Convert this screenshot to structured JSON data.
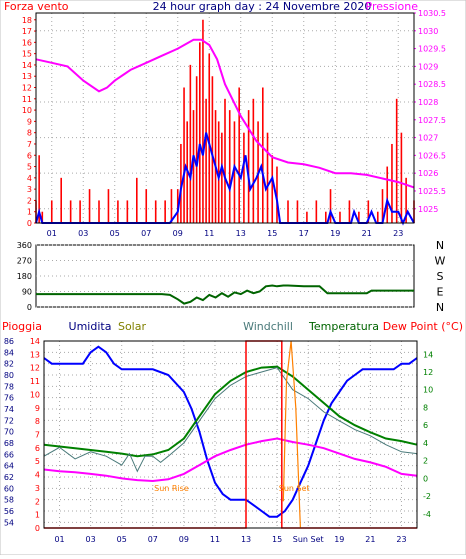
{
  "header": {
    "left_label": "Forza vento",
    "title": "24 hour graph day : 24 Novembre 2020",
    "right_label": "Pressione"
  },
  "colors": {
    "red": "#ff0000",
    "blue": "#0000ff",
    "magenta": "#ff00ff",
    "dark_green": "#006400",
    "green": "#008000",
    "olive": "#808000",
    "orange": "#ff8000",
    "navy": "#000080",
    "grey_green": "#4a7a7a",
    "dot_grid": "#aaaaaa",
    "window_bg": "#d8d8d8"
  },
  "chart_data": [
    {
      "type": "line",
      "name": "wind-and-pressure",
      "x_ticks": [
        "01",
        "03",
        "05",
        "07",
        "09",
        "11",
        "13",
        "15",
        "17",
        "19",
        "21",
        "23"
      ],
      "y_left_ticks": [
        "0",
        "1",
        "2",
        "3",
        "4",
        "5",
        "6",
        "7",
        "8",
        "9",
        "10",
        "11",
        "12",
        "13",
        "14",
        "15",
        "16",
        "17",
        "18"
      ],
      "y_right_ticks": [
        "1025",
        "1025.5",
        "1026",
        "1026.5",
        "1027",
        "1027.5",
        "1028",
        "1028.5",
        "1029",
        "1029.5",
        "1030",
        "1030.5"
      ],
      "ylim_left": [
        0,
        18.6
      ],
      "ylim_right": [
        1024.6,
        1030.5
      ],
      "xlim": [
        0,
        24
      ],
      "grid": "dotted",
      "series": [
        {
          "color_key": "magenta",
          "axis": "right",
          "x": [
            0,
            1,
            2,
            3,
            4,
            4.5,
            5,
            6,
            7,
            8,
            9,
            10,
            10.5,
            11,
            11.5,
            12,
            13,
            14,
            15,
            16,
            17,
            18,
            19,
            20,
            21,
            22,
            23,
            24
          ],
          "y": [
            1029.2,
            1029.1,
            1029.0,
            1028.6,
            1028.3,
            1028.4,
            1028.6,
            1028.9,
            1029.1,
            1029.3,
            1029.5,
            1029.75,
            1029.75,
            1029.6,
            1029.2,
            1028.5,
            1027.6,
            1026.9,
            1026.45,
            1026.3,
            1026.25,
            1026.15,
            1026.0,
            1026.0,
            1025.95,
            1025.85,
            1025.75,
            1025.6
          ]
        },
        {
          "color_key": "blue",
          "axis": "left",
          "x": [
            0,
            0.2,
            0.4,
            1,
            1.5,
            2,
            2.5,
            3,
            3.5,
            4,
            4.5,
            5,
            5.5,
            6,
            6.5,
            7,
            7.5,
            8,
            8.5,
            9,
            9.2,
            9.5,
            9.8,
            10,
            10.2,
            10.4,
            10.6,
            10.8,
            11,
            11.2,
            11.4,
            11.6,
            11.8,
            12,
            12.3,
            12.6,
            13,
            13.3,
            13.6,
            14,
            14.3,
            14.6,
            15,
            15.3,
            15.5,
            16,
            17,
            18,
            18.5,
            18.7,
            19,
            20,
            20.2,
            20.5,
            21,
            21.3,
            21.6,
            22,
            22.3,
            22.6,
            23,
            23.3,
            23.6,
            24
          ],
          "y": [
            0,
            1,
            0,
            0,
            0,
            0,
            0,
            0,
            0,
            0,
            0,
            0,
            0,
            0,
            0,
            0,
            0,
            0,
            0,
            1,
            3,
            5,
            4,
            6,
            5,
            7,
            6,
            8,
            7,
            6,
            5,
            4,
            5,
            4,
            3,
            5,
            4,
            6,
            3,
            4,
            5,
            3,
            4,
            2,
            0,
            0,
            0,
            0,
            0,
            1,
            0,
            0,
            1,
            0,
            0,
            1,
            0,
            0,
            2,
            1,
            1,
            0,
            1,
            0
          ]
        }
      ],
      "wind_gust_bars": {
        "color_key": "red",
        "axis": "left",
        "x": [
          0,
          0.2,
          0.4,
          1,
          1.6,
          2.2,
          2.8,
          3.4,
          4.0,
          4.6,
          5.2,
          5.8,
          6.4,
          7.0,
          7.6,
          8.2,
          8.6,
          9.0,
          9.2,
          9.4,
          9.6,
          9.8,
          10.0,
          10.2,
          10.4,
          10.6,
          10.8,
          11.0,
          11.2,
          11.4,
          11.6,
          11.8,
          12.0,
          12.3,
          12.6,
          12.9,
          13.2,
          13.5,
          13.8,
          14.1,
          14.4,
          14.7,
          15.0,
          15.3,
          16.0,
          16.6,
          17.2,
          17.8,
          18.4,
          18.7,
          19.3,
          19.9,
          20.5,
          21.1,
          21.7,
          22.0,
          22.3,
          22.6,
          22.9,
          23.2,
          23.5,
          24.0
        ],
        "y": [
          2,
          6,
          1,
          2,
          4,
          2,
          2,
          3,
          2,
          3,
          2,
          2,
          4,
          3,
          2,
          2,
          3,
          3,
          7,
          12,
          9,
          14,
          10,
          13,
          16,
          18,
          11,
          15,
          13,
          10,
          9,
          8,
          11,
          10,
          9,
          12,
          8,
          10,
          11,
          9,
          12,
          8,
          6,
          5,
          2,
          2,
          1,
          2,
          1,
          3,
          1,
          2,
          1,
          2,
          1,
          3,
          5,
          7,
          11,
          8,
          4,
          2
        ]
      }
    },
    {
      "type": "line",
      "name": "wind-direction",
      "y_left_ticks": [
        "0",
        "90",
        "180",
        "270",
        "360"
      ],
      "compass_labels": [
        "N",
        "W",
        "S",
        "E",
        "N"
      ],
      "ylim": [
        0,
        360
      ],
      "xlim": [
        0,
        24
      ],
      "series": [
        {
          "color_key": "dark_green",
          "x": [
            0,
            2,
            4,
            6,
            8,
            8.5,
            9,
            9.4,
            9.8,
            10.2,
            10.6,
            11,
            11.4,
            11.8,
            12.2,
            12.6,
            13,
            13.4,
            13.8,
            14.2,
            14.6,
            15,
            15.3,
            15.7,
            16,
            17,
            18,
            18.5,
            19,
            20,
            21,
            21.3,
            22,
            24
          ],
          "y": [
            75,
            75,
            75,
            75,
            75,
            70,
            45,
            20,
            30,
            55,
            40,
            70,
            55,
            80,
            60,
            85,
            75,
            95,
            80,
            90,
            120,
            125,
            120,
            125,
            125,
            120,
            120,
            80,
            80,
            80,
            80,
            95,
            95,
            95
          ]
        }
      ]
    },
    {
      "type": "line",
      "name": "rain-humidity-temperature",
      "headers": [
        "Pioggia",
        "Umidita",
        "Solar",
        "Windchill",
        "Temperatura",
        "Dew Point (°C)"
      ],
      "x_ticks": [
        "01",
        "03",
        "05",
        "07",
        "09",
        "11",
        "13",
        "15",
        "Sun Set",
        "19",
        "21",
        "23"
      ],
      "y_left_rain_ticks": [
        "0",
        "1",
        "2",
        "3",
        "4",
        "5",
        "6",
        "7",
        "8",
        "9",
        "10",
        "11",
        "12",
        "13",
        "14"
      ],
      "y_left_humidity_ticks": [
        "54",
        "56",
        "58",
        "60",
        "62",
        "64",
        "66",
        "68",
        "70",
        "72",
        "74",
        "76",
        "78",
        "80",
        "82",
        "84",
        "86"
      ],
      "y_right_temp_ticks": [
        "-4",
        "-2",
        "0",
        "2",
        "4",
        "6",
        "8",
        "10",
        "12",
        "14"
      ],
      "ylim_humidity": [
        53,
        86
      ],
      "ylim_temp": [
        -5.6,
        15.5
      ],
      "xlim": [
        0,
        24
      ],
      "annotations": [
        "Sun Rise",
        "Sun Set"
      ],
      "series": [
        {
          "color_key": "blue",
          "axis": "humidity",
          "x": [
            0,
            0.5,
            1.5,
            2.5,
            3,
            3.5,
            4,
            4.5,
            5,
            6,
            7,
            8,
            9,
            9.5,
            10,
            10.5,
            11,
            11.5,
            12,
            12.5,
            13,
            13.5,
            14,
            14.5,
            15,
            15.5,
            16,
            16.5,
            17,
            17.5,
            18,
            18.5,
            19,
            19.5,
            20,
            20.5,
            21,
            21.5,
            22,
            22.5,
            23,
            23.5,
            24
          ],
          "y": [
            83,
            82,
            82,
            82,
            84,
            85,
            84,
            82,
            81,
            81,
            81,
            80,
            77,
            74,
            70,
            65,
            61,
            59,
            58,
            58,
            58,
            57,
            56,
            55,
            55,
            56,
            58,
            61,
            64,
            68,
            72,
            75,
            77,
            79,
            80,
            81,
            81,
            81,
            81,
            81,
            82,
            82,
            83
          ]
        },
        {
          "color_key": "magenta",
          "axis": "temp",
          "x": [
            0,
            1,
            2,
            3,
            4,
            5,
            6,
            7,
            8,
            9,
            10,
            11,
            12,
            13,
            14,
            15,
            16,
            17,
            18,
            19,
            20,
            21,
            22,
            23,
            24
          ],
          "y": [
            1.0,
            0.8,
            0.7,
            0.5,
            0.3,
            0.0,
            -0.2,
            -0.3,
            -0.1,
            0.5,
            1.5,
            2.5,
            3.2,
            3.8,
            4.2,
            4.5,
            4.1,
            3.8,
            3.4,
            2.8,
            2.2,
            1.8,
            1.3,
            0.5,
            0.3
          ]
        },
        {
          "color_key": "green",
          "axis": "temp",
          "x": [
            0,
            1,
            2,
            3,
            4,
            5,
            6,
            7,
            8,
            9,
            10,
            11,
            12,
            13,
            14,
            15,
            16,
            17,
            18,
            19,
            20,
            21,
            22,
            23,
            24
          ],
          "y": [
            3.8,
            3.6,
            3.4,
            3.2,
            3.0,
            2.8,
            2.5,
            2.7,
            3.2,
            4.5,
            7.0,
            9.5,
            11.0,
            12.0,
            12.5,
            12.6,
            11.5,
            10.0,
            8.5,
            7.0,
            6.0,
            5.2,
            4.5,
            4.2,
            3.8
          ]
        },
        {
          "color_key": "grey_green",
          "axis": "temp",
          "x": [
            0,
            1,
            2,
            3,
            4,
            5,
            5.5,
            6,
            6.5,
            7,
            7.5,
            8,
            9,
            10,
            11,
            12,
            13,
            14,
            15,
            16,
            17,
            18,
            19,
            20,
            21,
            22,
            23,
            24
          ],
          "y": [
            2.5,
            3.5,
            2.2,
            3.0,
            2.5,
            1.5,
            2.8,
            0.8,
            2.5,
            2.5,
            1.8,
            2.5,
            4.0,
            6.5,
            9.0,
            10.5,
            11.5,
            12.0,
            12.5,
            10.0,
            9.0,
            7.5,
            6.5,
            5.5,
            4.8,
            3.8,
            3.0,
            2.8
          ]
        },
        {
          "color_key": "red",
          "axis": "rain",
          "x": [
            0,
            13,
            13,
            15.3,
            15.3,
            24
          ],
          "y": [
            0,
            0,
            14,
            14,
            0,
            0
          ]
        },
        {
          "color_key": "orange",
          "axis": "rain",
          "x": [
            15.4,
            15.6,
            15.9,
            16.2,
            16.5
          ],
          "y": [
            2,
            11,
            14,
            9,
            0
          ]
        }
      ]
    }
  ]
}
